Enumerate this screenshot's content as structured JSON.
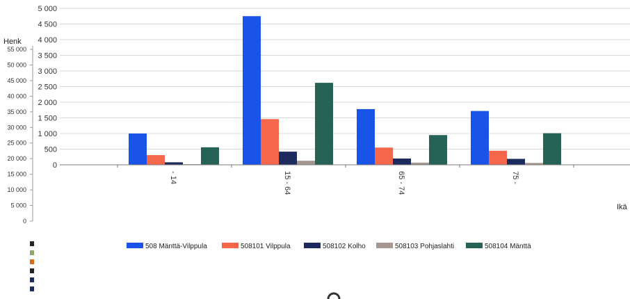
{
  "chart_data": [
    {
      "type": "bar",
      "categories": [
        "- 14",
        "15 - 64",
        "65 - 74",
        "75 -"
      ],
      "series": [
        {
          "name": "508 Mänttä-Vilppula",
          "color": "#1a53e8",
          "values": [
            1000,
            4750,
            1780,
            1720
          ]
        },
        {
          "name": "508101 Vilppula",
          "color": "#f4674a",
          "values": [
            310,
            1460,
            550,
            450
          ]
        },
        {
          "name": "508102 Kolho",
          "color": "#1c2a5e",
          "values": [
            80,
            420,
            200,
            190
          ]
        },
        {
          "name": "508103 Pohjaslahti",
          "color": "#a59890",
          "values": [
            20,
            130,
            70,
            60
          ]
        },
        {
          "name": "508104 Mänttä",
          "color": "#266356",
          "values": [
            560,
            2620,
            950,
            1010
          ]
        }
      ],
      "ylim": [
        0,
        5000
      ],
      "yticks": [
        "5 000",
        "4 500",
        "4 000",
        "3 500",
        "3 000",
        "2 500",
        "2 000",
        "1 500",
        "1 000",
        "500",
        "0"
      ],
      "ytick_values": [
        5000,
        4500,
        4000,
        3500,
        3000,
        2500,
        2000,
        1500,
        1000,
        500,
        0
      ],
      "grid": true,
      "legend": "bottom"
    },
    {
      "type": "bar",
      "ylabel": "Henk",
      "xlabel": "Ikä",
      "ylim": [
        0,
        55000
      ],
      "yticks": [
        "55 000",
        "50 000",
        "45 000",
        "40 000",
        "35 000",
        "30 000",
        "25 000",
        "20 000",
        "15 000",
        "10 000",
        "5 000",
        "0"
      ],
      "ytick_values": [
        55000,
        50000,
        45000,
        40000,
        35000,
        30000,
        25000,
        20000,
        15000,
        10000,
        5000,
        0
      ],
      "legend_colors": [
        "#222222",
        "#8fa86a",
        "#d86a1a",
        "#222222",
        "#1c2a5e",
        "#1c2a5e"
      ]
    }
  ]
}
